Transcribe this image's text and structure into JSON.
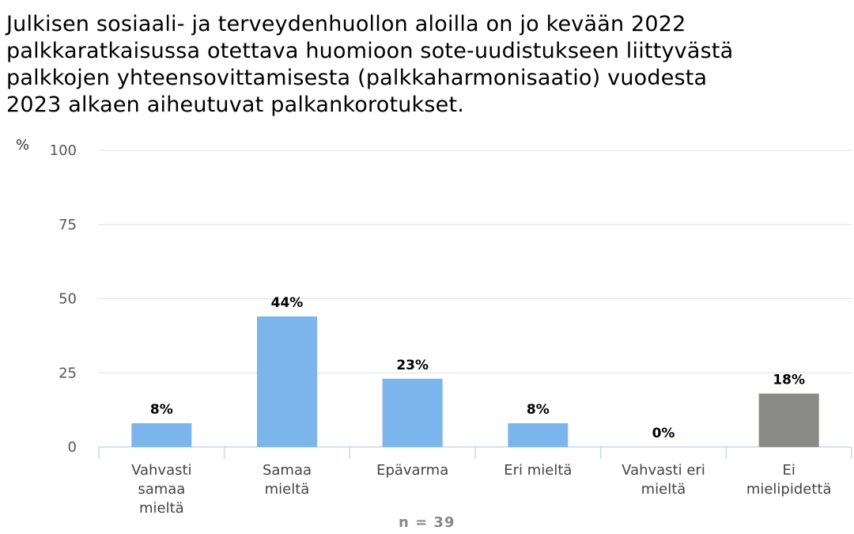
{
  "title": "Julkisen sosiaali- ja terveydenhuollon aloilla on jo kevään 2022\npalkkaratkaisussa otettava huomioon sote-uudistukseen liittyvästä\npalkkojen yhteensovittamisesta (palkkaharmonisaatio) vuodesta\n2023 alkaen aiheutuvat palkankorotukset.",
  "footer": {
    "n_label": "n = 39"
  },
  "chart_data": {
    "type": "bar",
    "title": "Julkisen sosiaali- ja terveydenhuollon aloilla on jo kevään 2022 palkkaratkaisussa otettava huomioon sote-uudistukseen liittyvästä palkkojen yhteensovittamisesta (palkkaharmonisaatio) vuodesta 2023 alkaen aiheutuvat palkankorotukset.",
    "ylabel": "%",
    "xlabel": "",
    "ylim": [
      0,
      100
    ],
    "yticks": [
      0,
      25,
      50,
      75,
      100
    ],
    "grid": true,
    "categories": [
      "Vahvasti samaa mieltä",
      "Samaa mieltä",
      "Epävarma",
      "Eri mieltä",
      "Vahvasti eri mieltä",
      "Ei mielipidettä"
    ],
    "category_lines": [
      [
        "Vahvasti",
        "samaa",
        "mieltä"
      ],
      [
        "Samaa",
        "mieltä"
      ],
      [
        "Epävarma"
      ],
      [
        "Eri mieltä"
      ],
      [
        "Vahvasti eri",
        "mieltä"
      ],
      [
        "Ei",
        "mielipidettä"
      ]
    ],
    "values": [
      8,
      44,
      23,
      8,
      0,
      18
    ],
    "data_labels": [
      "8%",
      "44%",
      "23%",
      "8%",
      "0%",
      "18%"
    ],
    "colors": [
      "#7cb5ec",
      "#7cb5ec",
      "#7cb5ec",
      "#7cb5ec",
      "#7cb5ec",
      "#8a8a86"
    ]
  }
}
